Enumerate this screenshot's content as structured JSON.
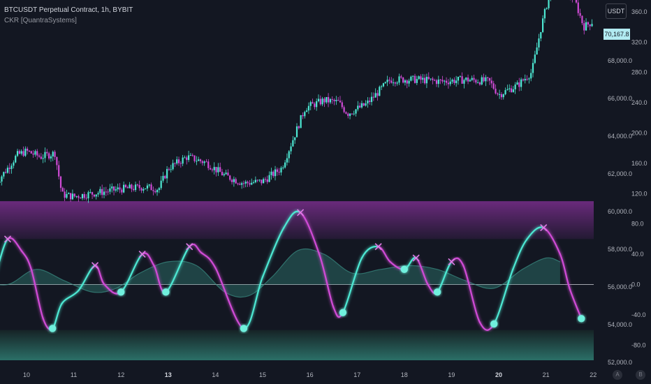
{
  "header": {
    "symbol_line": "BTCUSDT Perpetual Contract, 1h, BYBIT",
    "indicator_line": "CKR [QuantraSystems]"
  },
  "controls": {
    "currency_button": "USDT",
    "auto_button": "A",
    "log_button": "B"
  },
  "colors": {
    "background": "#131722",
    "bull": "#4de8d3",
    "bear": "#d04bd6",
    "zone_top": "#5b2a6e",
    "zone_bottom": "#2a6a66",
    "grid_text": "#b2b5be"
  },
  "chart_data": [
    {
      "type": "candlestick",
      "title": "BTCUSDT Perpetual Contract, 1h, BYBIT",
      "last_price_label": "70,167.8",
      "y_ticks": [
        "68,000.0",
        "66,000.0",
        "64,000.0",
        "62,000.0",
        "60,000.0",
        "58,000.0",
        "56,000.0",
        "54,000.0",
        "52,000.0"
      ],
      "ylim": [
        51000,
        73000
      ],
      "x_ticks": [
        "10",
        "11",
        "12",
        "13",
        "14",
        "15",
        "16",
        "17",
        "18",
        "19",
        "20",
        "21",
        "22"
      ],
      "close_series": [
        {
          "x": 9.35,
          "y": 61500
        },
        {
          "x": 9.6,
          "y": 62300
        },
        {
          "x": 9.8,
          "y": 63000
        },
        {
          "x": 10.0,
          "y": 63200
        },
        {
          "x": 10.3,
          "y": 62900
        },
        {
          "x": 10.6,
          "y": 63100
        },
        {
          "x": 10.75,
          "y": 60900
        },
        {
          "x": 11.0,
          "y": 60800
        },
        {
          "x": 11.5,
          "y": 61000
        },
        {
          "x": 12.0,
          "y": 61200
        },
        {
          "x": 12.5,
          "y": 61300
        },
        {
          "x": 12.8,
          "y": 61200
        },
        {
          "x": 13.0,
          "y": 62300
        },
        {
          "x": 13.4,
          "y": 62900
        },
        {
          "x": 13.8,
          "y": 62600
        },
        {
          "x": 14.2,
          "y": 61900
        },
        {
          "x": 14.6,
          "y": 61500
        },
        {
          "x": 15.0,
          "y": 61600
        },
        {
          "x": 15.4,
          "y": 62300
        },
        {
          "x": 15.7,
          "y": 64200
        },
        {
          "x": 15.9,
          "y": 65500
        },
        {
          "x": 16.3,
          "y": 65900
        },
        {
          "x": 16.6,
          "y": 65800
        },
        {
          "x": 16.8,
          "y": 65200
        },
        {
          "x": 17.2,
          "y": 65700
        },
        {
          "x": 17.7,
          "y": 67000
        },
        {
          "x": 18.3,
          "y": 67000
        },
        {
          "x": 18.8,
          "y": 66900
        },
        {
          "x": 19.3,
          "y": 67000
        },
        {
          "x": 19.8,
          "y": 66900
        },
        {
          "x": 20.0,
          "y": 66200
        },
        {
          "x": 20.4,
          "y": 66700
        },
        {
          "x": 20.7,
          "y": 67400
        },
        {
          "x": 20.9,
          "y": 69800
        },
        {
          "x": 21.1,
          "y": 71800
        },
        {
          "x": 21.4,
          "y": 71700
        },
        {
          "x": 21.6,
          "y": 71300
        },
        {
          "x": 21.8,
          "y": 69800
        },
        {
          "x": 22.0,
          "y": 70100
        }
      ]
    },
    {
      "type": "line",
      "title": "CKR [QuantraSystems]",
      "y_ticks": [
        "360.0",
        "320.0",
        "280.0",
        "240.0",
        "200.0",
        "160.0",
        "120.0",
        "80.0",
        "40.0",
        "0.0",
        "-40.0",
        "-80.0"
      ],
      "ylim": [
        -100,
        375
      ],
      "zero_line": 0,
      "upper_zone": [
        60,
        110
      ],
      "lower_zone": [
        -100,
        -60
      ],
      "series": [
        {
          "color": "cyan/magenta by direction",
          "points": [
            {
              "x": 9.0,
              "y": -32
            },
            {
              "x": 9.3,
              "y": 5
            },
            {
              "x": 9.6,
              "y": 60
            },
            {
              "x": 9.9,
              "y": 44
            },
            {
              "x": 10.1,
              "y": 20
            },
            {
              "x": 10.35,
              "y": -45
            },
            {
              "x": 10.55,
              "y": -58
            },
            {
              "x": 10.75,
              "y": -25
            },
            {
              "x": 11.1,
              "y": -8
            },
            {
              "x": 11.45,
              "y": 25
            },
            {
              "x": 11.65,
              "y": 0
            },
            {
              "x": 12.0,
              "y": -10
            },
            {
              "x": 12.45,
              "y": 40
            },
            {
              "x": 12.7,
              "y": 25
            },
            {
              "x": 12.95,
              "y": -10
            },
            {
              "x": 13.45,
              "y": 50
            },
            {
              "x": 13.7,
              "y": 42
            },
            {
              "x": 14.0,
              "y": 22
            },
            {
              "x": 14.6,
              "y": -58
            },
            {
              "x": 15.0,
              "y": 10
            },
            {
              "x": 15.45,
              "y": 75
            },
            {
              "x": 15.8,
              "y": 95
            },
            {
              "x": 16.2,
              "y": 40
            },
            {
              "x": 16.5,
              "y": -30
            },
            {
              "x": 16.7,
              "y": -37
            },
            {
              "x": 17.1,
              "y": 35
            },
            {
              "x": 17.45,
              "y": 50
            },
            {
              "x": 17.7,
              "y": 30
            },
            {
              "x": 18.0,
              "y": 20
            },
            {
              "x": 18.25,
              "y": 35
            },
            {
              "x": 18.5,
              "y": 0
            },
            {
              "x": 18.7,
              "y": -10
            },
            {
              "x": 19.0,
              "y": 30
            },
            {
              "x": 19.25,
              "y": 25
            },
            {
              "x": 19.6,
              "y": -50
            },
            {
              "x": 19.9,
              "y": -52
            },
            {
              "x": 20.3,
              "y": 20
            },
            {
              "x": 20.6,
              "y": 60
            },
            {
              "x": 20.95,
              "y": 75
            },
            {
              "x": 21.3,
              "y": 40
            },
            {
              "x": 21.5,
              "y": -5
            },
            {
              "x": 21.75,
              "y": -45
            }
          ]
        },
        {
          "color": "area",
          "points": [
            {
              "x": 9.0,
              "y": 5
            },
            {
              "x": 9.6,
              "y": 0
            },
            {
              "x": 10.2,
              "y": 20
            },
            {
              "x": 10.8,
              "y": 5
            },
            {
              "x": 11.4,
              "y": -10
            },
            {
              "x": 11.9,
              "y": -5
            },
            {
              "x": 12.4,
              "y": 15
            },
            {
              "x": 13.0,
              "y": 30
            },
            {
              "x": 13.6,
              "y": 25
            },
            {
              "x": 14.2,
              "y": -10
            },
            {
              "x": 14.7,
              "y": -15
            },
            {
              "x": 15.2,
              "y": 10
            },
            {
              "x": 15.75,
              "y": 45
            },
            {
              "x": 16.3,
              "y": 40
            },
            {
              "x": 16.9,
              "y": 15
            },
            {
              "x": 17.5,
              "y": 20
            },
            {
              "x": 18.1,
              "y": 25
            },
            {
              "x": 18.7,
              "y": 20
            },
            {
              "x": 19.3,
              "y": 5
            },
            {
              "x": 19.9,
              "y": -5
            },
            {
              "x": 20.5,
              "y": 20
            },
            {
              "x": 21.0,
              "y": 35
            },
            {
              "x": 21.3,
              "y": 30
            }
          ]
        }
      ]
    }
  ]
}
